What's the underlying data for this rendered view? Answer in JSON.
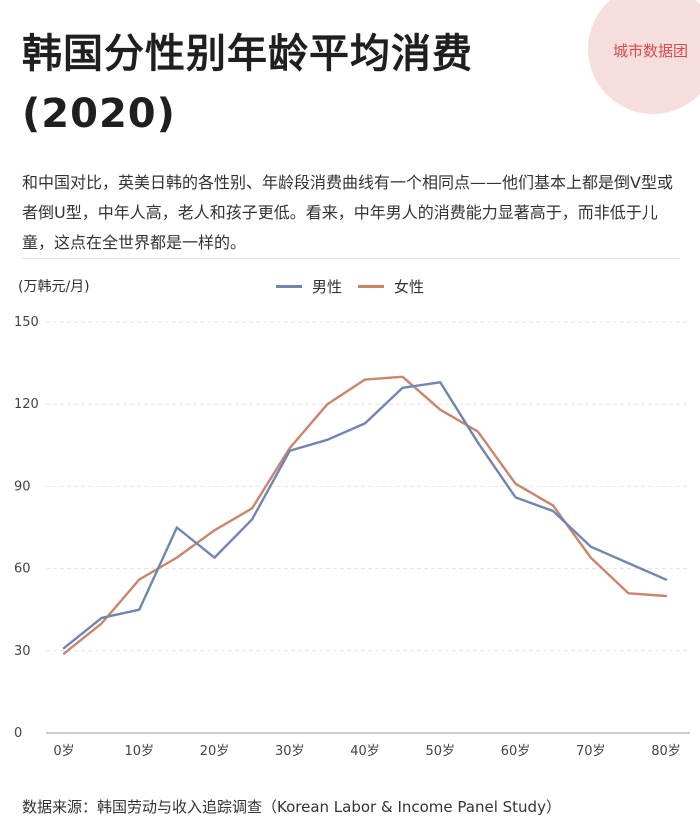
{
  "title": "韩国分性别年龄平均消费 (2020)",
  "logo": {
    "text": "城市数据团",
    "color": "#d64a4a"
  },
  "description": "和中国对比，英美日韩的各性别、年龄段消费曲线有一个相同点——他们基本上都是倒V型或者倒U型，中年人高，老人和孩子更低。看来，中年男人的消费能力显著高于，而非低于儿童，这点在全世界都是一样的。",
  "source": "数据来源：韩国劳动与收入追踪调查（Korean Labor & Income Panel Study）",
  "chart_data": {
    "type": "line",
    "title": "韩国分性别年龄平均消费 (2020)",
    "ylabel": "(万韩元/月)",
    "xlabel": "",
    "ylim": [
      0,
      150
    ],
    "yticks": [
      0,
      30,
      60,
      90,
      120,
      150
    ],
    "xlim": [
      0,
      80
    ],
    "xticks": [
      0,
      10,
      20,
      30,
      40,
      50,
      60,
      70,
      80
    ],
    "xtick_labels": [
      "0岁",
      "10岁",
      "20岁",
      "30岁",
      "40岁",
      "50岁",
      "60岁",
      "70岁",
      "80岁"
    ],
    "grid": true,
    "legend": "top-center",
    "x": [
      0,
      5,
      10,
      15,
      20,
      25,
      30,
      35,
      40,
      45,
      50,
      55,
      60,
      65,
      70,
      75,
      80
    ],
    "series": [
      {
        "name": "男性",
        "color": "#6f86b3",
        "values": [
          31,
          42,
          45,
          75,
          64,
          78,
          103,
          107,
          113,
          126,
          128,
          106,
          86,
          81,
          68,
          62,
          56
        ]
      },
      {
        "name": "女性",
        "color": "#c9866c",
        "values": [
          29,
          40,
          56,
          64,
          74,
          82,
          104,
          120,
          129,
          130,
          118,
          110,
          91,
          83,
          64,
          51,
          50
        ]
      }
    ]
  }
}
